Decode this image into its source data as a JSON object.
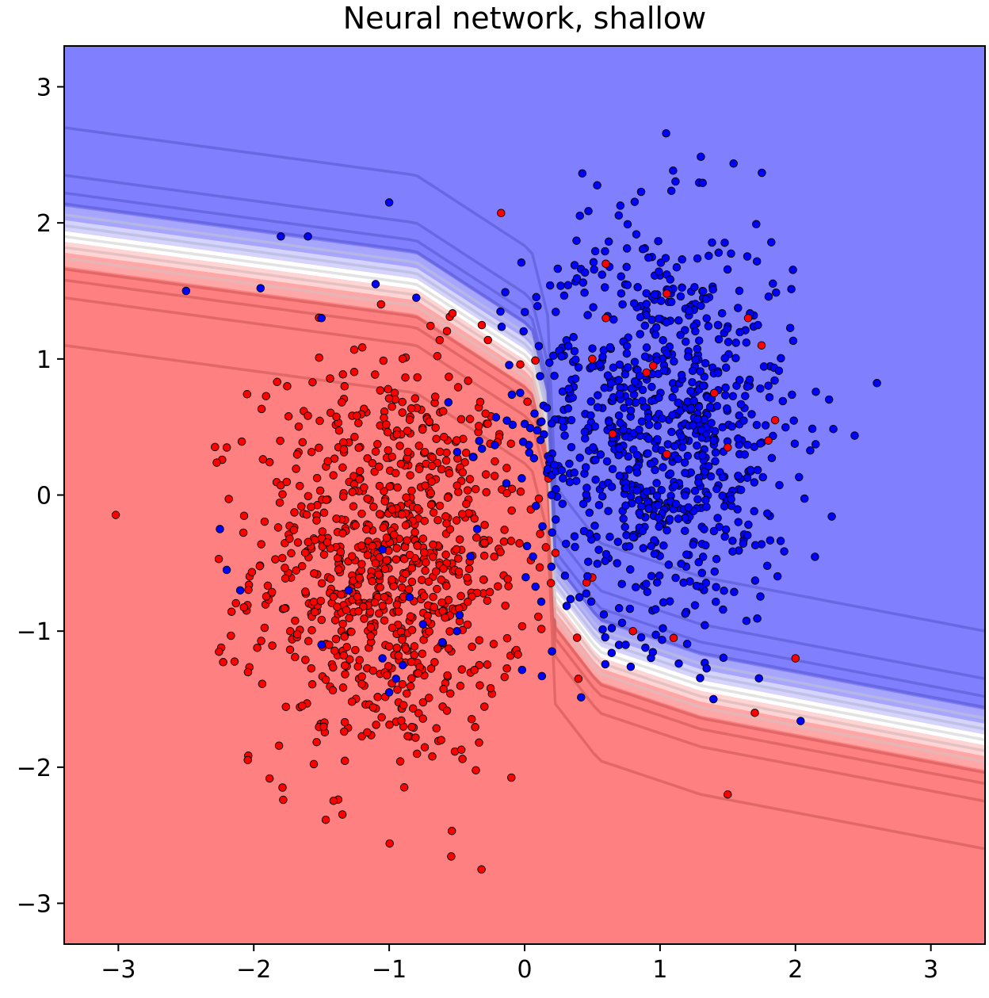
{
  "chart_data": {
    "type": "scatter",
    "title": "Neural network, shallow",
    "xlabel": "",
    "ylabel": "",
    "xlim": [
      -3.4,
      3.4
    ],
    "ylim": [
      -3.3,
      3.3
    ],
    "xticks": [
      -3,
      -2,
      -1,
      0,
      1,
      2,
      3
    ],
    "yticks": [
      -3,
      -2,
      -1,
      0,
      1,
      2,
      3
    ],
    "xtick_labels": [
      "−3",
      "−2",
      "−1",
      "0",
      "1",
      "2",
      "3"
    ],
    "ytick_labels": [
      "−3",
      "−2",
      "−1",
      "0",
      "1",
      "2",
      "3"
    ],
    "grid": false,
    "background": {
      "description": "decision surface; red below boundary, blue above",
      "colors": {
        "red_region": "#ff8080",
        "blue_region": "#8080ff",
        "boundary": "#ffffff"
      }
    },
    "decision_boundary": {
      "points": [
        [
          -3.4,
          1.9
        ],
        [
          -0.8,
          1.55
        ],
        [
          0.05,
          1.0
        ],
        [
          0.2,
          0.4
        ],
        [
          0.15,
          -0.2
        ],
        [
          0.2,
          -0.7
        ],
        [
          0.55,
          -1.15
        ],
        [
          1.3,
          -1.4
        ],
        [
          3.4,
          -1.8
        ]
      ]
    },
    "contour_offsets": [
      -0.8,
      -0.45,
      -0.32,
      -0.24,
      -0.16,
      -0.08,
      0.0,
      0.08,
      0.16,
      0.24,
      0.32,
      0.45,
      0.8
    ],
    "series": [
      {
        "color": "#ff0000",
        "center": [
          -1.0,
          -0.5
        ],
        "spread": [
          0.5,
          0.75
        ],
        "count": 900,
        "outliers": [
          [
            0.6,
            1.7
          ],
          [
            1.05,
            1.48
          ],
          [
            1.85,
            0.55
          ],
          [
            1.5,
            0.35
          ],
          [
            2.0,
            -1.2
          ],
          [
            1.7,
            -1.6
          ],
          [
            1.5,
            -2.2
          ],
          [
            0.8,
            -1.0
          ],
          [
            1.1,
            -1.05
          ],
          [
            1.8,
            0.4
          ],
          [
            1.75,
            1.1
          ],
          [
            1.65,
            1.3
          ],
          [
            1.4,
            0.75
          ],
          [
            0.9,
            0.9
          ],
          [
            1.05,
            0.3
          ],
          [
            0.65,
            0.45
          ],
          [
            0.6,
            1.3
          ],
          [
            0.5,
            1.0
          ],
          [
            0.95,
            0.95
          ]
        ]
      },
      {
        "color": "#0000ff",
        "center": [
          1.0,
          0.5
        ],
        "spread": [
          0.5,
          0.75
        ],
        "count": 900,
        "outliers": [
          [
            -2.5,
            1.5
          ],
          [
            -1.95,
            1.52
          ],
          [
            -1.5,
            1.3
          ],
          [
            -2.25,
            -0.25
          ],
          [
            -2.2,
            -0.55
          ],
          [
            -2.1,
            -0.7
          ],
          [
            -1.3,
            -0.7
          ],
          [
            -1.5,
            -1.1
          ],
          [
            -1.05,
            -1.2
          ],
          [
            -0.95,
            -1.35
          ],
          [
            -0.9,
            -1.25
          ],
          [
            -1.0,
            -1.45
          ],
          [
            -1.05,
            -0.4
          ],
          [
            -0.5,
            -1.0
          ],
          [
            -0.35,
            -0.25
          ],
          [
            -1.0,
            2.15
          ],
          [
            -1.8,
            1.9
          ],
          [
            -1.6,
            1.9
          ],
          [
            -0.8,
            1.45
          ],
          [
            -1.1,
            1.55
          ],
          [
            -0.4,
            -0.45
          ],
          [
            -0.75,
            -0.95
          ],
          [
            -0.85,
            -0.75
          ]
        ]
      }
    ],
    "point_style": {
      "radius": 4.8,
      "edgecolor": "#000000"
    }
  }
}
